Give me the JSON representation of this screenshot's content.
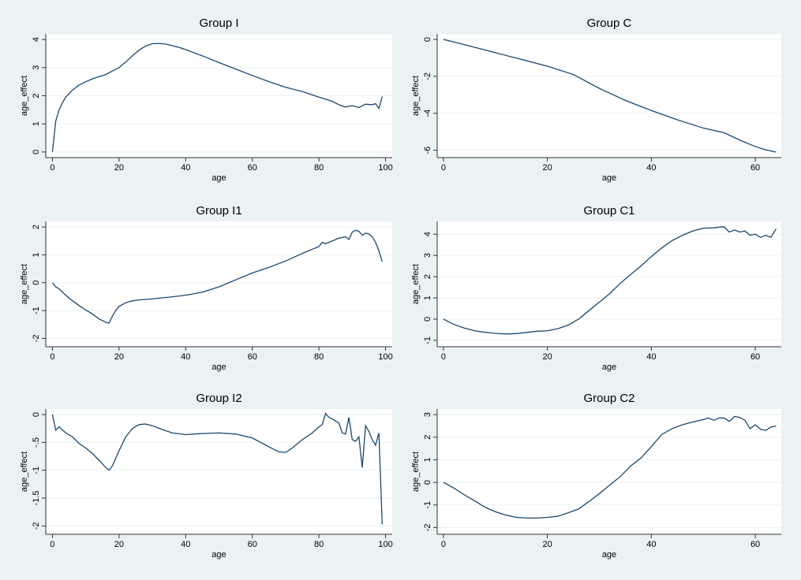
{
  "chart_data": [
    {
      "type": "line",
      "title": "Group I",
      "xlabel": "age",
      "ylabel": "age_effect",
      "x": [
        0,
        1,
        2,
        3,
        4,
        6,
        8,
        10,
        12,
        14,
        16,
        18,
        20,
        22,
        24,
        26,
        28,
        30,
        32,
        34,
        36,
        38,
        40,
        45,
        50,
        55,
        60,
        65,
        70,
        75,
        80,
        82,
        84,
        86,
        88,
        90,
        92,
        94,
        96,
        97,
        98,
        99
      ],
      "series": [
        {
          "color": "#1a476f",
          "values": [
            0,
            1.1,
            1.5,
            1.75,
            1.95,
            2.2,
            2.38,
            2.5,
            2.6,
            2.68,
            2.75,
            2.88,
            3.0,
            3.2,
            3.42,
            3.62,
            3.77,
            3.85,
            3.86,
            3.84,
            3.78,
            3.72,
            3.64,
            3.42,
            3.18,
            2.95,
            2.72,
            2.5,
            2.3,
            2.15,
            1.95,
            1.88,
            1.8,
            1.68,
            1.6,
            1.65,
            1.58,
            1.7,
            1.68,
            1.72,
            1.55,
            1.97
          ]
        }
      ],
      "xlim": [
        -2,
        102
      ],
      "ylim": [
        -0.2,
        4.2
      ],
      "xticks": [
        0,
        20,
        40,
        60,
        80,
        100
      ],
      "yticks": [
        0,
        1,
        2,
        3,
        4
      ],
      "grid": true
    },
    {
      "type": "line",
      "title": "Group C",
      "xlabel": "age",
      "ylabel": "age_effect",
      "x": [
        0,
        5,
        10,
        15,
        20,
        25,
        30,
        35,
        40,
        45,
        50,
        54,
        57,
        60,
        62,
        64
      ],
      "series": [
        {
          "color": "#1a476f",
          "values": [
            0,
            -0.35,
            -0.72,
            -1.08,
            -1.45,
            -1.9,
            -2.65,
            -3.3,
            -3.85,
            -4.35,
            -4.8,
            -5.05,
            -5.45,
            -5.8,
            -5.98,
            -6.1
          ]
        }
      ],
      "xlim": [
        -1.2,
        65
      ],
      "ylim": [
        -6.4,
        0.3
      ],
      "xticks": [
        0,
        20,
        40,
        60
      ],
      "yticks": [
        0,
        -2,
        -4,
        -6
      ],
      "grid": true
    },
    {
      "type": "line",
      "title": "Group I1",
      "xlabel": "age",
      "ylabel": "age_effect",
      "x": [
        0,
        1,
        2,
        4,
        6,
        8,
        10,
        12,
        14,
        16,
        17,
        18,
        19,
        20,
        22,
        24,
        26,
        30,
        35,
        40,
        45,
        50,
        55,
        60,
        65,
        70,
        75,
        78,
        80,
        81,
        82,
        84,
        86,
        88,
        89,
        90,
        91,
        92,
        93,
        94,
        95,
        96,
        97,
        98,
        99
      ],
      "series": [
        {
          "color": "#1a476f",
          "values": [
            0,
            -0.15,
            -0.22,
            -0.45,
            -0.65,
            -0.82,
            -0.98,
            -1.12,
            -1.3,
            -1.42,
            -1.45,
            -1.2,
            -1.0,
            -0.85,
            -0.72,
            -0.65,
            -0.62,
            -0.58,
            -0.52,
            -0.45,
            -0.34,
            -0.15,
            0.1,
            0.35,
            0.55,
            0.78,
            1.05,
            1.2,
            1.3,
            1.45,
            1.4,
            1.5,
            1.6,
            1.65,
            1.55,
            1.82,
            1.88,
            1.85,
            1.7,
            1.78,
            1.75,
            1.65,
            1.45,
            1.15,
            0.75
          ]
        }
      ],
      "xlim": [
        -2,
        102
      ],
      "ylim": [
        -2.3,
        2.2
      ],
      "xticks": [
        0,
        20,
        40,
        60,
        80,
        100
      ],
      "yticks": [
        -2,
        -1,
        0,
        1,
        2
      ],
      "grid": true
    },
    {
      "type": "line",
      "title": "Group C1",
      "xlabel": "age",
      "ylabel": "age_effect",
      "x": [
        0,
        2,
        4,
        6,
        8,
        10,
        12,
        14,
        16,
        18,
        20,
        22,
        24,
        26,
        28,
        30,
        32,
        34,
        36,
        38,
        40,
        42,
        44,
        46,
        48,
        50,
        52,
        54,
        55,
        56,
        57,
        58,
        59,
        60,
        61,
        62,
        63,
        64
      ],
      "series": [
        {
          "color": "#1a476f",
          "values": [
            0,
            -0.25,
            -0.42,
            -0.55,
            -0.62,
            -0.67,
            -0.7,
            -0.68,
            -0.63,
            -0.57,
            -0.55,
            -0.45,
            -0.28,
            0,
            0.4,
            0.8,
            1.2,
            1.68,
            2.1,
            2.5,
            2.95,
            3.35,
            3.7,
            3.95,
            4.15,
            4.28,
            4.3,
            4.35,
            4.1,
            4.2,
            4.1,
            4.15,
            3.95,
            4.0,
            3.85,
            3.95,
            3.85,
            4.25
          ]
        }
      ],
      "xlim": [
        -1.2,
        65
      ],
      "ylim": [
        -1.3,
        4.6
      ],
      "xticks": [
        0,
        20,
        40,
        60
      ],
      "yticks": [
        -1,
        0,
        1,
        2,
        3,
        4
      ],
      "grid": true
    },
    {
      "type": "line",
      "title": "Group I2",
      "xlabel": "age",
      "ylabel": "age_effect",
      "x": [
        0,
        1,
        2,
        4,
        6,
        8,
        10,
        12,
        14,
        16,
        17,
        18,
        20,
        22,
        24,
        26,
        28,
        30,
        33,
        36,
        40,
        45,
        50,
        55,
        60,
        65,
        68,
        70,
        72,
        75,
        78,
        80,
        81,
        82,
        83,
        84,
        86,
        87,
        88,
        89,
        90,
        91,
        92,
        93,
        94,
        95,
        96,
        97,
        98,
        99
      ],
      "series": [
        {
          "color": "#1a476f",
          "values": [
            0,
            -0.28,
            -0.22,
            -0.33,
            -0.4,
            -0.52,
            -0.6,
            -0.7,
            -0.82,
            -0.95,
            -1.0,
            -0.92,
            -0.65,
            -0.4,
            -0.25,
            -0.18,
            -0.17,
            -0.2,
            -0.27,
            -0.33,
            -0.36,
            -0.34,
            -0.33,
            -0.35,
            -0.42,
            -0.58,
            -0.67,
            -0.68,
            -0.6,
            -0.45,
            -0.33,
            -0.22,
            -0.18,
            0.02,
            -0.05,
            -0.08,
            -0.15,
            -0.33,
            -0.35,
            -0.05,
            -0.45,
            -0.48,
            -0.4,
            -0.95,
            -0.2,
            -0.3,
            -0.45,
            -0.55,
            -0.33,
            -1.97
          ]
        }
      ],
      "xlim": [
        -2,
        102
      ],
      "ylim": [
        -2.15,
        0.1
      ],
      "xticks": [
        0,
        20,
        40,
        60,
        80,
        100
      ],
      "yticks": [
        0,
        {
          "value": -0.5,
          "label": "-.5"
        },
        -1,
        {
          "value": -1.5,
          "label": "-1.5"
        },
        -2
      ],
      "grid": true
    },
    {
      "type": "line",
      "title": "Group C2",
      "xlabel": "age",
      "ylabel": "age_effect",
      "x": [
        0,
        2,
        4,
        6,
        8,
        10,
        12,
        14,
        16,
        18,
        20,
        22,
        24,
        26,
        28,
        30,
        32,
        34,
        36,
        38,
        40,
        42,
        44,
        46,
        48,
        50,
        51,
        52,
        53,
        54,
        55,
        56,
        57,
        58,
        59,
        60,
        61,
        62,
        63,
        64
      ],
      "series": [
        {
          "color": "#1a476f",
          "values": [
            0,
            -0.25,
            -0.55,
            -0.82,
            -1.1,
            -1.3,
            -1.45,
            -1.55,
            -1.58,
            -1.58,
            -1.55,
            -1.5,
            -1.35,
            -1.18,
            -0.85,
            -0.5,
            -0.12,
            0.25,
            0.72,
            1.08,
            1.58,
            2.12,
            2.38,
            2.55,
            2.68,
            2.78,
            2.85,
            2.75,
            2.85,
            2.85,
            2.7,
            2.92,
            2.88,
            2.75,
            2.38,
            2.55,
            2.35,
            2.3,
            2.45,
            2.5
          ]
        }
      ],
      "xlim": [
        -1.2,
        65
      ],
      "ylim": [
        -2.3,
        3.25
      ],
      "xticks": [
        0,
        20,
        40,
        60
      ],
      "yticks": [
        -2,
        -1,
        0,
        1,
        2,
        3
      ],
      "grid": true
    }
  ]
}
